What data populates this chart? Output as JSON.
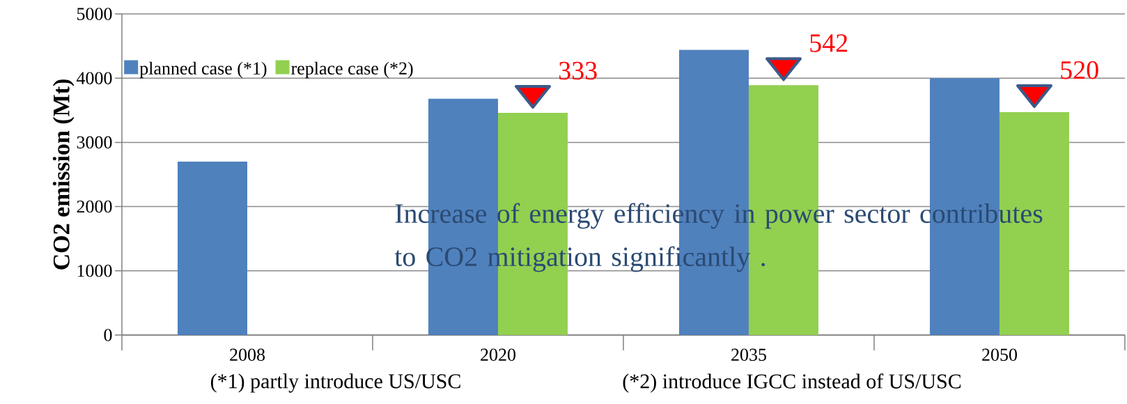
{
  "chart_data": {
    "type": "bar",
    "ylabel": "CO2 emission (Mt)",
    "categories": [
      "2008",
      "2020",
      "2035",
      "2050"
    ],
    "series": [
      {
        "name": "planned case (*1)",
        "color": "#4f81bd",
        "values": [
          2700,
          3680,
          4440,
          4000
        ]
      },
      {
        "name": "replace case (*2)",
        "color": "#92d050",
        "values": [
          null,
          3460,
          3890,
          3470
        ]
      }
    ],
    "ylim": [
      0,
      5000
    ],
    "yticks": [
      0,
      1000,
      2000,
      3000,
      4000,
      5000
    ],
    "grid": "y",
    "legend": "top left",
    "annotations": [
      {
        "text": "333",
        "x": "2020",
        "y": 3460
      },
      {
        "text": "542",
        "x": "2035",
        "y": 3890
      },
      {
        "text": "520",
        "x": "2050",
        "y": 3470
      },
      "Increase of energy efficiency in power sector contributes  to CO2 mitigation significantly .",
      "(*1) partly introduce US/USC",
      "(*2) introduce IGCC instead of US/USC"
    ]
  }
}
